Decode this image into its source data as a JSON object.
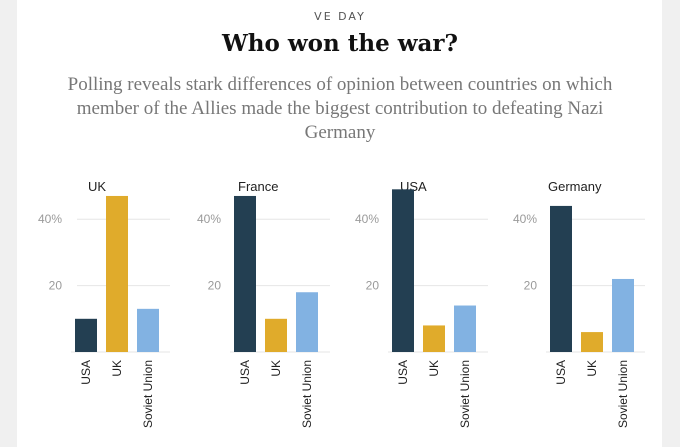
{
  "kicker": "VE DAY",
  "title": "Who won the war?",
  "subtitle": "Polling reveals stark differences of opinion between countries on which member of the Allies made the biggest contribution to defeating Nazi Germany",
  "colors": {
    "USA": "#233f52",
    "UK": "#e0ab2b",
    "Soviet Union": "#82b2e2",
    "grid": "#e6e6e6",
    "tick": "#9a9a9a",
    "text": "#222222"
  },
  "chart_data": [
    {
      "type": "bar",
      "title": "UK",
      "categories": [
        "USA",
        "UK",
        "Soviet Union"
      ],
      "values": [
        10,
        47,
        13
      ],
      "ylim": [
        0,
        50
      ],
      "yticks": [
        {
          "value": 20,
          "label": "20"
        },
        {
          "value": 40,
          "label": "40%"
        }
      ]
    },
    {
      "type": "bar",
      "title": "France",
      "categories": [
        "USA",
        "UK",
        "Soviet Union"
      ],
      "values": [
        47,
        10,
        18
      ],
      "ylim": [
        0,
        50
      ],
      "yticks": [
        {
          "value": 20,
          "label": "20"
        },
        {
          "value": 40,
          "label": "40%"
        }
      ]
    },
    {
      "type": "bar",
      "title": "USA",
      "categories": [
        "USA",
        "UK",
        "Soviet Union"
      ],
      "values": [
        49,
        8,
        14
      ],
      "ylim": [
        0,
        50
      ],
      "yticks": [
        {
          "value": 20,
          "label": "20"
        },
        {
          "value": 40,
          "label": "40%"
        }
      ]
    },
    {
      "type": "bar",
      "title": "Germany",
      "categories": [
        "USA",
        "UK",
        "Soviet Union"
      ],
      "values": [
        44,
        6,
        22
      ],
      "ylim": [
        0,
        50
      ],
      "yticks": [
        {
          "value": 20,
          "label": "20"
        },
        {
          "value": 40,
          "label": "40%"
        }
      ]
    }
  ]
}
